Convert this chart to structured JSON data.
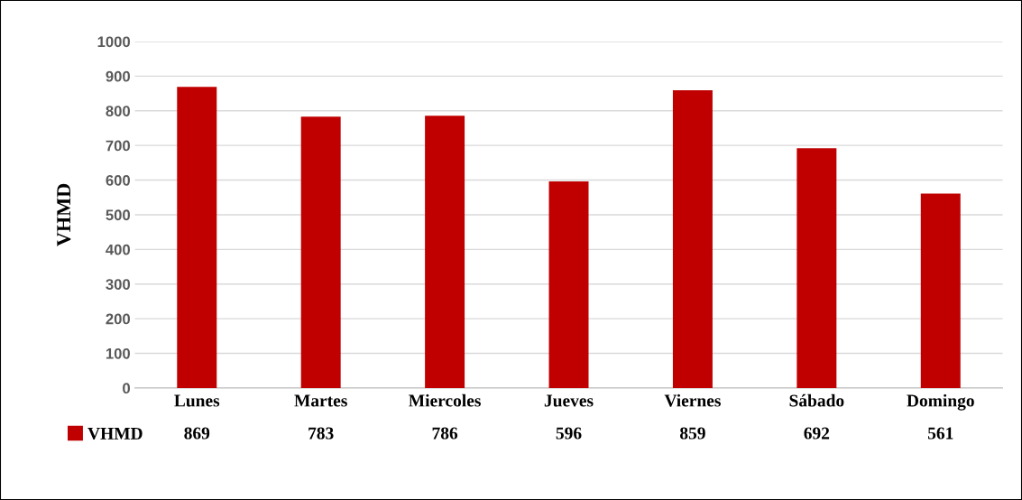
{
  "chart_data": {
    "type": "bar",
    "ylabel": "VHMD",
    "categories": [
      "Lunes",
      "Martes",
      "Miercoles",
      "Jueves",
      "Viernes",
      "Sábado",
      "Domingo"
    ],
    "series": [
      {
        "name": "VHMD",
        "color": "#c00000",
        "values": [
          869,
          783,
          786,
          596,
          859,
          692,
          561
        ]
      }
    ],
    "ylim": [
      0,
      1000
    ],
    "yticks": [
      0,
      100,
      200,
      300,
      400,
      500,
      600,
      700,
      800,
      900,
      1000
    ],
    "grid": "y",
    "legend": "bottom left",
    "data_labels": true
  }
}
